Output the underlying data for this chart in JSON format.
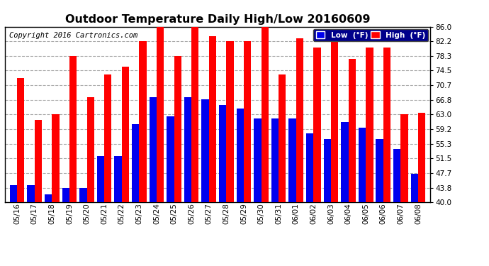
{
  "title": "Outdoor Temperature Daily High/Low 20160609",
  "copyright": "Copyright 2016 Cartronics.com",
  "legend_low": "Low  (°F)",
  "legend_high": "High  (°F)",
  "dates": [
    "05/16",
    "05/17",
    "05/18",
    "05/19",
    "05/20",
    "05/21",
    "05/22",
    "05/23",
    "05/24",
    "05/25",
    "05/26",
    "05/27",
    "05/28",
    "05/29",
    "05/30",
    "05/31",
    "06/01",
    "06/02",
    "06/03",
    "06/04",
    "06/05",
    "06/06",
    "06/07",
    "06/08"
  ],
  "high": [
    72.5,
    61.5,
    63.0,
    78.3,
    67.5,
    73.5,
    75.5,
    82.2,
    86.0,
    78.3,
    86.0,
    83.5,
    82.2,
    82.2,
    86.0,
    73.5,
    83.0,
    80.5,
    85.0,
    77.5,
    80.5,
    80.5,
    63.0,
    63.5
  ],
  "low": [
    44.5,
    44.5,
    42.0,
    43.8,
    43.8,
    52.0,
    52.0,
    60.5,
    67.5,
    62.5,
    67.5,
    67.0,
    65.5,
    64.5,
    62.0,
    62.0,
    62.0,
    58.0,
    56.5,
    61.0,
    59.5,
    56.5,
    54.0,
    47.5
  ],
  "ylim_min": 40.0,
  "ylim_max": 86.0,
  "yticks": [
    40.0,
    43.8,
    47.7,
    51.5,
    55.3,
    59.2,
    63.0,
    66.8,
    70.7,
    74.5,
    78.3,
    82.2,
    86.0
  ],
  "ytick_labels": [
    "40.0",
    "43.8",
    "47.7",
    "51.5",
    "55.3",
    "59.2",
    "63.0",
    "66.8",
    "70.7",
    "74.5",
    "78.3",
    "82.2",
    "86.0"
  ],
  "bar_width": 0.42,
  "high_color": "#ff0000",
  "low_color": "#0000ee",
  "bg_color": "#ffffff",
  "grid_color": "#aaaaaa",
  "title_fontsize": 11.5,
  "tick_fontsize": 7.5,
  "copyright_fontsize": 7.5
}
